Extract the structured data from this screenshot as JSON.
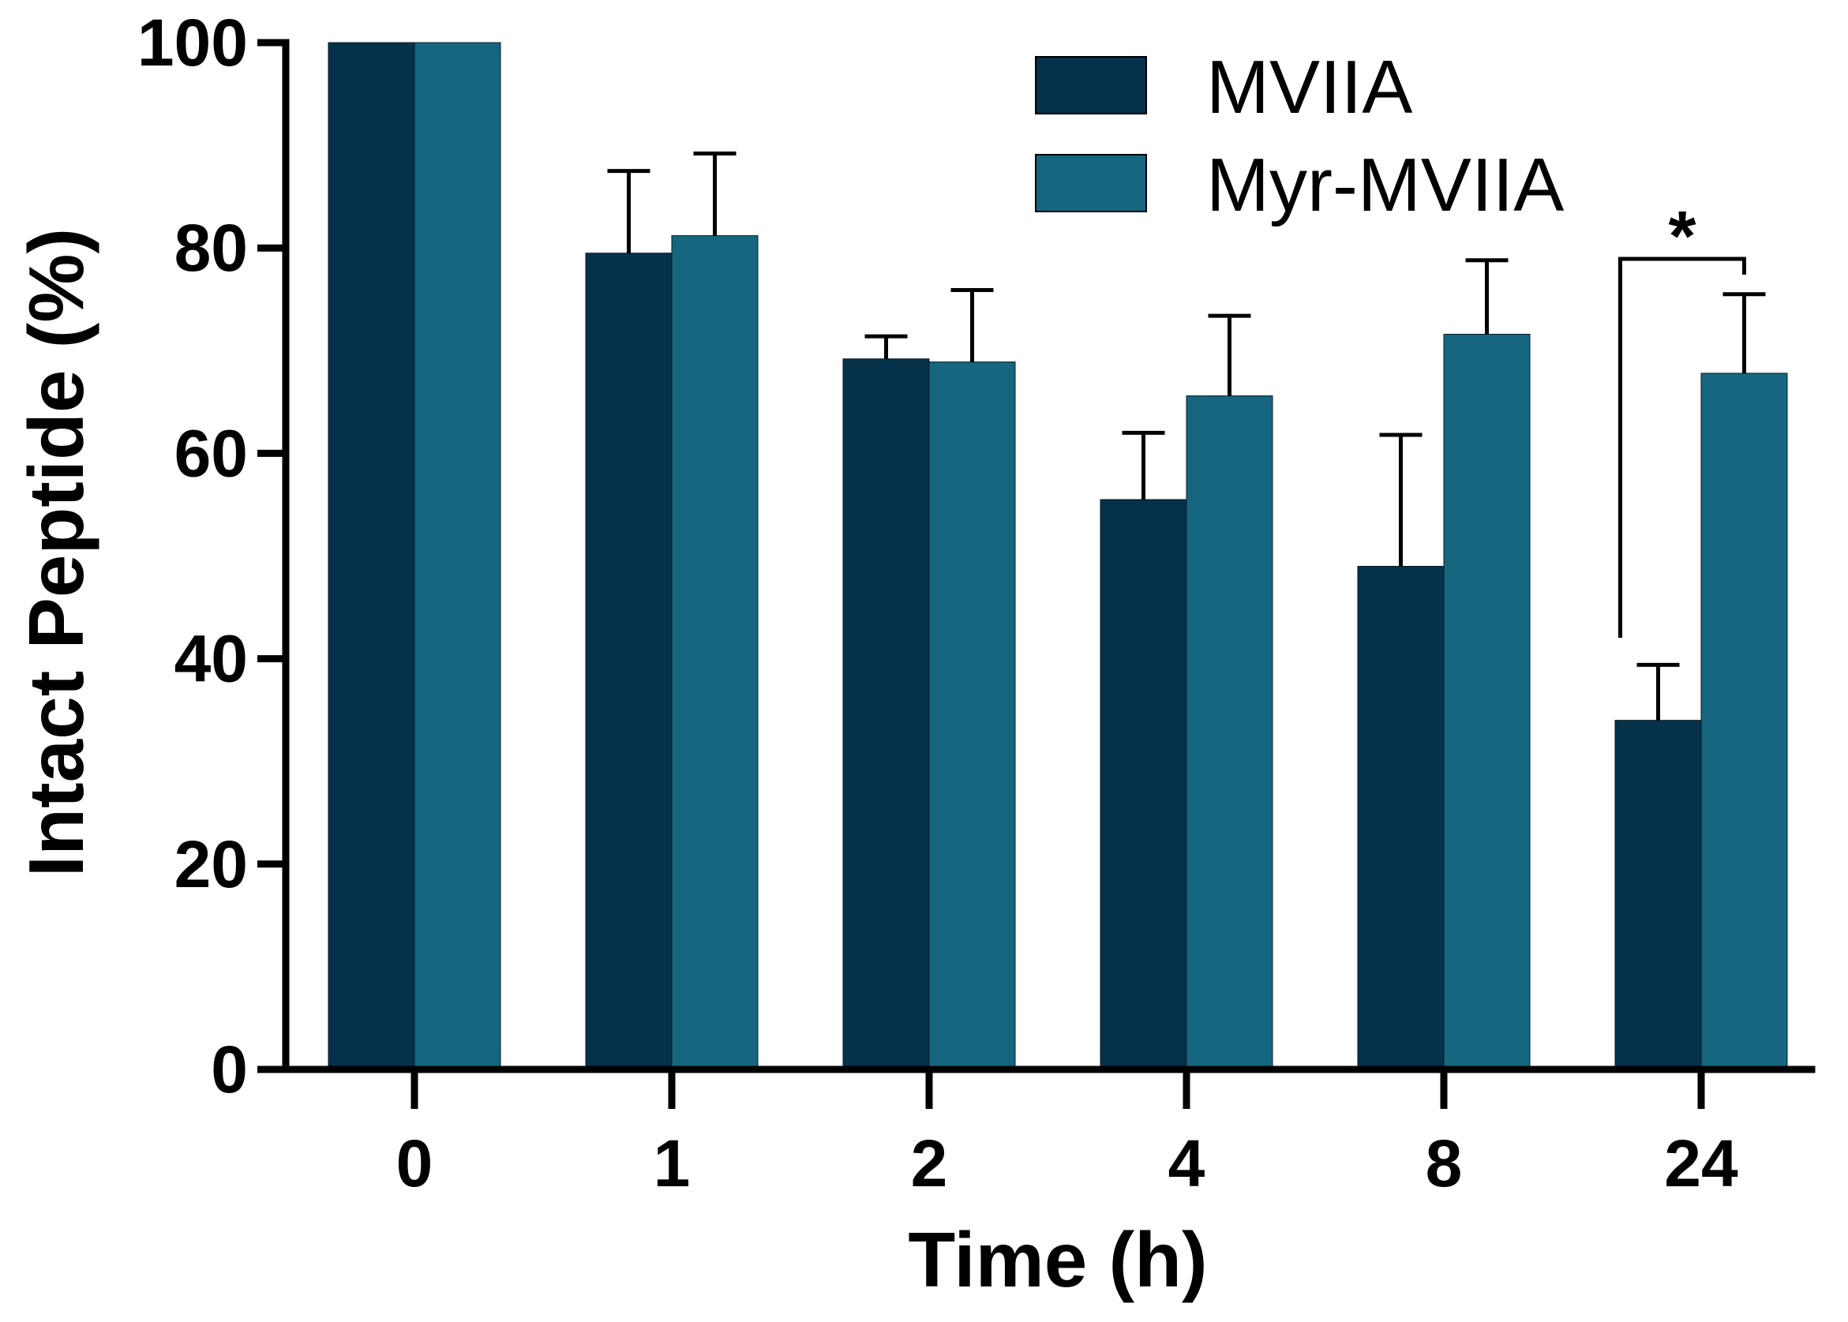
{
  "chart_data": {
    "type": "bar",
    "title": "",
    "xlabel": "Time (h)",
    "ylabel": "Intact Peptide (%)",
    "ylim": [
      0,
      100
    ],
    "yticks": [
      "0",
      "20",
      "40",
      "60",
      "80",
      "100"
    ],
    "categories": [
      "0",
      "1",
      "2",
      "4",
      "8",
      "24"
    ],
    "series": [
      {
        "name": "MVIIA",
        "color": "#05314a",
        "values": [
          100,
          79.5,
          69.2,
          55.5,
          49,
          34
        ],
        "errors": [
          0,
          8,
          2.2,
          6.5,
          12.8,
          5.4
        ]
      },
      {
        "name": "Myr-MVIIA",
        "color": "#16667f",
        "values": [
          100,
          81.2,
          68.9,
          65.6,
          71.6,
          67.8
        ],
        "errors": [
          0,
          8,
          7,
          7.8,
          7.2,
          7.7
        ]
      }
    ],
    "legend_position": "top-right",
    "annotations": [
      {
        "text": "*",
        "category": "24",
        "between": [
          "MVIIA",
          "Myr-MVIIA"
        ]
      }
    ]
  }
}
